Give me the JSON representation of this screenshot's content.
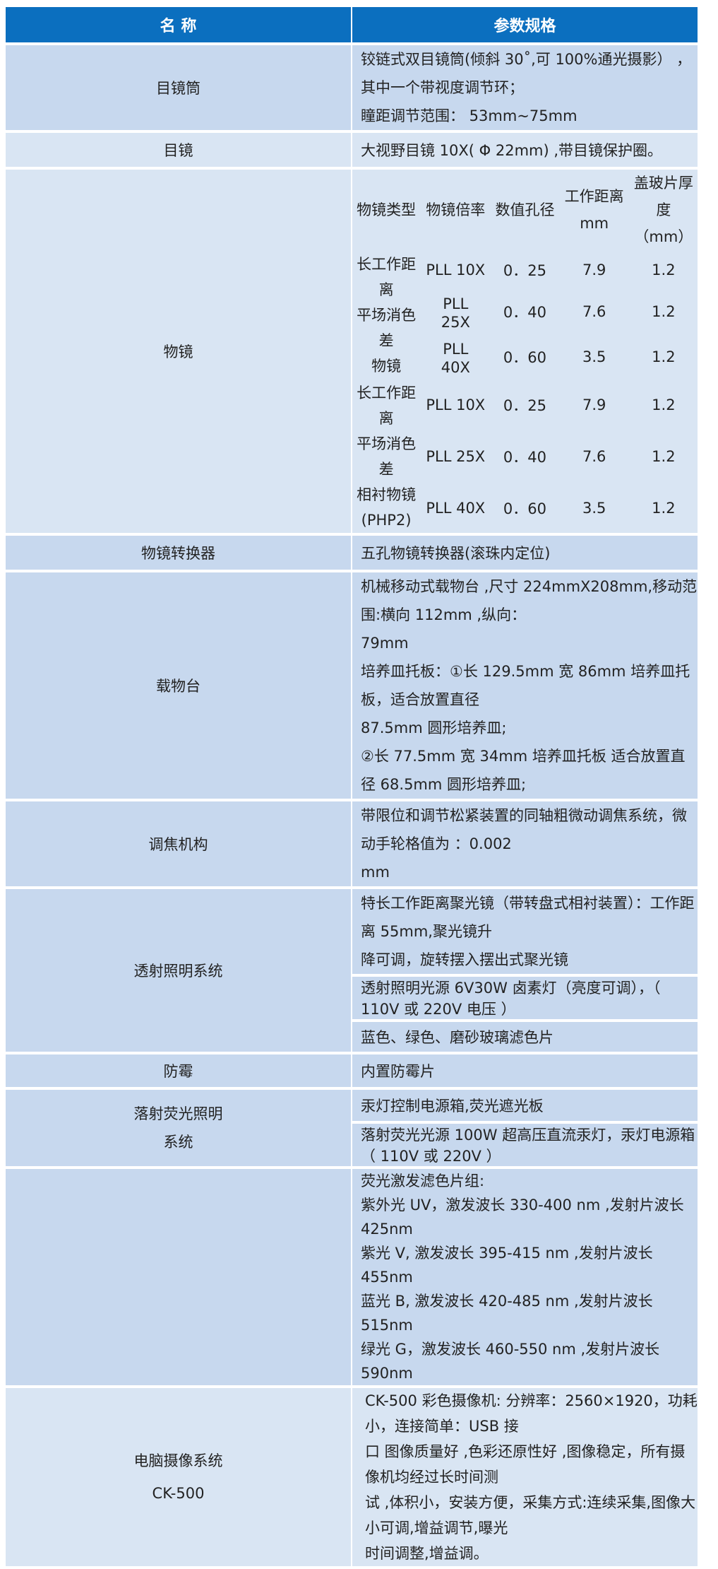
{
  "header": {
    "name": "名 称",
    "spec": "参数规格"
  },
  "rows": {
    "eyepiece_tube": {
      "name": "目镜筒",
      "lines": [
        "铰链式双目镜筒(倾斜 30˚,可 100%通光摄影） ，其中一个带视度调节环；",
        "瞳距调节范围： 53mm~75mm"
      ]
    },
    "eyepiece": {
      "name": "目镜",
      "spec": "大视野目镜 10X( Φ 22mm) ,带目镜保护圈。"
    },
    "objective": {
      "name": "物镜",
      "headers": [
        "物镜类型",
        "物镜倍率",
        "数值孔径",
        "工作距离 mm",
        "盖玻片厚度（mm）"
      ],
      "groups": [
        {
          "type_lines": [
            "长工作距离",
            "平场消色差",
            "物镜"
          ],
          "items": [
            [
              "PLL 10X",
              "0．25",
              "7.9",
              "1.2"
            ],
            [
              "PLL　25X",
              "0．40",
              "7.6",
              "1.2"
            ],
            [
              "PLL　40X",
              "0．60",
              "3.5",
              "1.2"
            ]
          ]
        },
        {
          "type_lines": [
            "长工作距离",
            "平场消色差",
            "相衬物镜",
            "(PHP2)"
          ],
          "items": [
            [
              "PLL 10X",
              "0．25",
              "7.9",
              "1.2"
            ],
            [
              "PLL 25X",
              "0．40",
              "7.6",
              "1.2"
            ],
            [
              "PLL 40X",
              "0．60",
              "3.5",
              "1.2"
            ]
          ]
        }
      ]
    },
    "nosepiece": {
      "name": "物镜转换器",
      "spec": "五孔物镜转换器(滚珠内定位)"
    },
    "stage": {
      "name": "载物台",
      "lines": [
        "机械移动式载物台 ,尺寸 224mmX208mm,移动范围:横向 112mm ,纵向：",
        "79mm",
        "培养皿托板：①长 129.5mm  宽 86mm 培养皿托板，适合放置直径",
        "87.5mm 圆形培养皿;",
        "②长 77.5mm  宽 34mm 培养皿托板 适合放置直径 68.5mm 圆形培养皿;"
      ]
    },
    "focus": {
      "name": "调焦机构",
      "lines": [
        "带限位和调节松紧装置的同轴粗微动调焦系统，微动手轮格值为 ：0.002",
        "mm"
      ]
    },
    "transmitted": {
      "name": "透射照明系统",
      "parts": [
        [
          "特长工作距离聚光镜（带转盘式相衬装置）：工作距离  55mm,聚光镜升",
          "降可调，旋转摆入摆出式聚光镜"
        ],
        [
          "透射照明光源  6V30W  卤素灯（亮度可调），（   110V  或  220V 电压   ）"
        ],
        [
          "蓝色、绿色、磨砂玻璃滤色片"
        ]
      ]
    },
    "antimold": {
      "name": "防霉",
      "spec": "内置防霉片"
    },
    "epi": {
      "name_lines": [
        "落射荧光照明",
        "系统"
      ],
      "parts": [
        "汞灯控制电源箱,荧光遮光板",
        "落射荧光光源  100W  超高压直流汞灯，汞灯电源箱（   110V  或  220V   ）"
      ]
    },
    "filters": {
      "name": "",
      "lines": [
        "荧光激发滤色片组:",
        "紫外光 UV，激发波长  330-400 nm ,发射片波长 425nm",
        "紫光  V,  激发波长  395-415 nm ,发射片波长 455nm",
        "蓝光  B,  激发波长  420-485 nm ,发射片波长 515nm",
        "绿光 G，激发波长  460-550 nm ,发射片波长 590nm"
      ]
    },
    "camera": {
      "name_lines": [
        "电脑摄像系统",
        "CK-500"
      ],
      "lines": [
        "CK-500 彩色摄像机: 分辨率：2560×1920，功耗小，连接简单：USB 接",
        "口    图像质量好 ,色彩还原性好 ,图像稳定，所有摄像机均经过长时间测",
        "试 ,体积小，安装方便，采集方式:连续采集,图像大小可调,增益调节,曝光",
        "时间调整,增益调。"
      ]
    }
  },
  "colors": {
    "header": "#0b6fbf",
    "row_dark": "#c7d8ee",
    "row_light": "#d9e5f3"
  }
}
